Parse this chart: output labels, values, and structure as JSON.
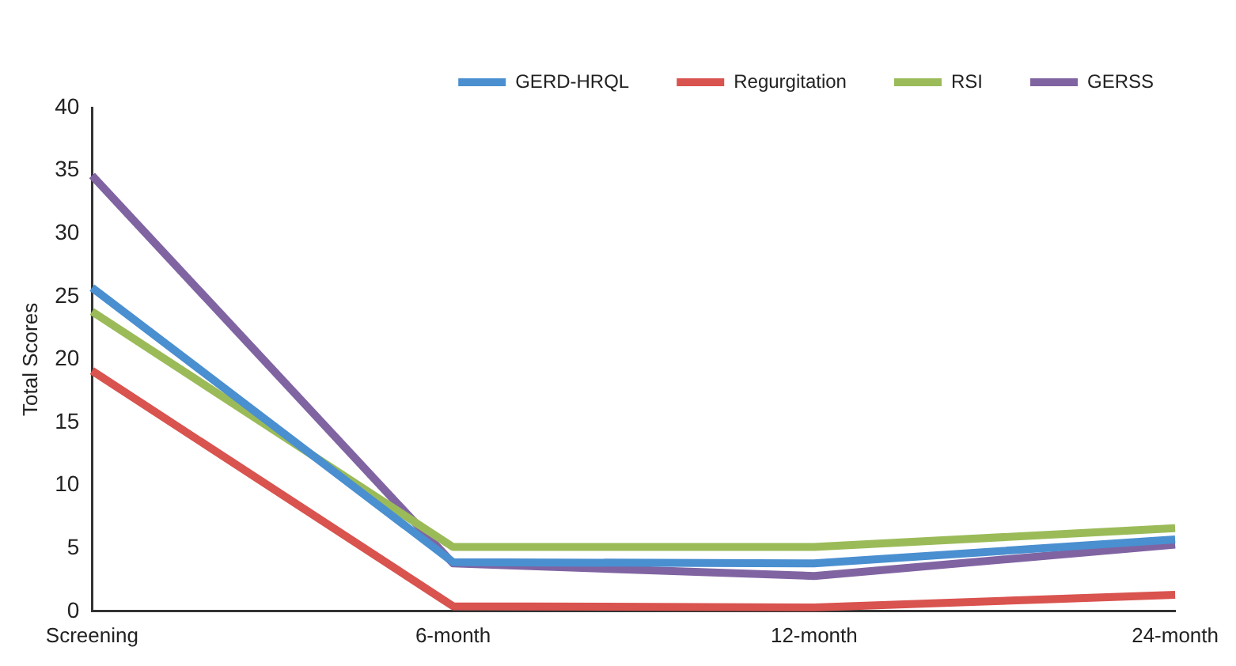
{
  "chart_data": {
    "type": "line",
    "ylabel": "Total Scores",
    "categories": [
      "Screening",
      "6-month",
      "12-month",
      "24-month"
    ],
    "series": [
      {
        "name": "GERD-HRQL",
        "color": "#4a8fd0",
        "values": [
          25.7,
          3.9,
          3.8,
          5.7
        ]
      },
      {
        "name": "Regurgitation",
        "color": "#d9534f",
        "values": [
          19.1,
          0.4,
          0.3,
          1.3
        ]
      },
      {
        "name": "RSI",
        "color": "#9bbb59",
        "values": [
          23.8,
          5.1,
          5.1,
          6.6
        ]
      },
      {
        "name": "GERSS",
        "color": "#8064a2",
        "values": [
          34.6,
          3.8,
          2.8,
          5.3
        ]
      }
    ],
    "ylim": [
      0,
      40
    ],
    "yticks": [
      0,
      5,
      10,
      15,
      20,
      25,
      30,
      35,
      40
    ],
    "grid": false,
    "legend": "top right",
    "marker": "none",
    "line_style": "solid"
  }
}
